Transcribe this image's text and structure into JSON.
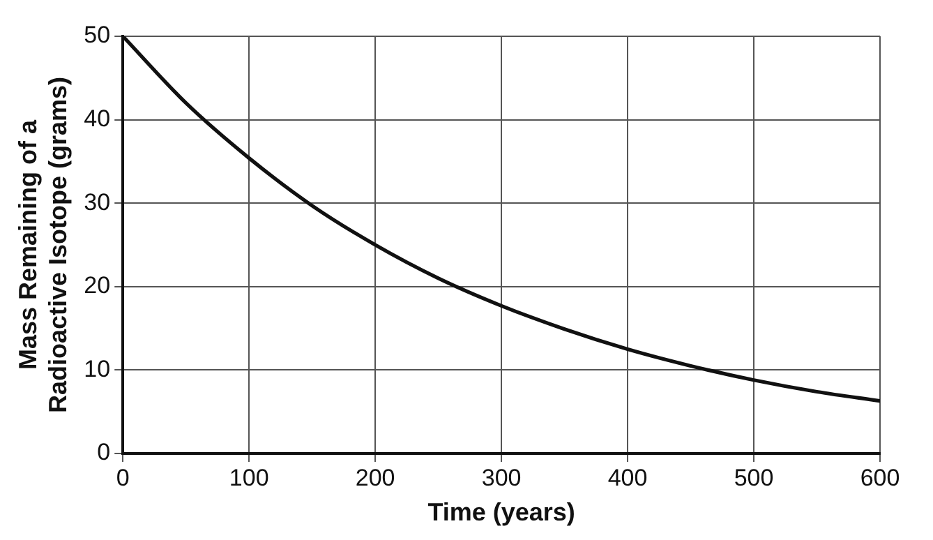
{
  "chart_data": {
    "type": "line",
    "xlabel": "Time (years)",
    "ylabel": "Mass Remaining of a\nRadioactive Isotope (grams)",
    "x": [
      0,
      50,
      100,
      150,
      200,
      250,
      300,
      350,
      400,
      450,
      500,
      550,
      600
    ],
    "series": [
      {
        "color": "#111111",
        "values": [
          50,
          42,
          35.4,
          29.7,
          25,
          21,
          17.7,
          14.9,
          12.5,
          10.5,
          8.8,
          7.4,
          6.3
        ]
      }
    ],
    "xlim": [
      0,
      600
    ],
    "xticks": [
      0,
      100,
      200,
      300,
      400,
      500,
      600
    ],
    "ylim": [
      0,
      50
    ],
    "yticks": [
      0,
      10,
      20,
      30,
      40,
      50
    ],
    "grid": true,
    "legend": false,
    "marker": "none",
    "line_style": "solid"
  }
}
